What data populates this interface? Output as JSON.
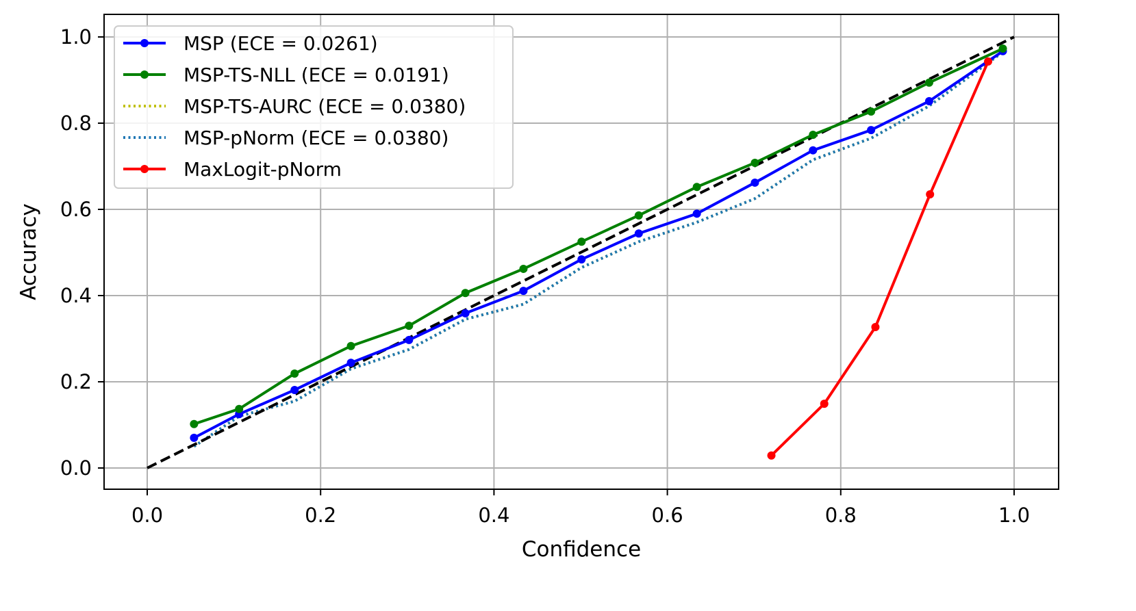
{
  "chart_data": {
    "type": "line",
    "title": "",
    "xlabel": "Confidence",
    "ylabel": "Accuracy",
    "xlim": [
      -0.05,
      1.05
    ],
    "ylim": [
      -0.05,
      1.05
    ],
    "xticks": [
      "0.0",
      "0.2",
      "0.4",
      "0.6",
      "0.8",
      "1.0"
    ],
    "yticks": [
      "0.0",
      "0.2",
      "0.4",
      "0.6",
      "0.8",
      "1.0"
    ],
    "grid": true,
    "legend_position": "top-left",
    "reference": {
      "x": [
        0,
        1
      ],
      "y": [
        0,
        1
      ],
      "color": "#000000",
      "style": "dashed"
    },
    "series": [
      {
        "name": "MSP (ECE = 0.0261)",
        "color": "#0000ff",
        "style": "solid",
        "markers": true,
        "x": [
          0.054,
          0.106,
          0.17,
          0.235,
          0.302,
          0.367,
          0.434,
          0.501,
          0.567,
          0.634,
          0.701,
          0.768,
          0.835,
          0.902,
          0.987
        ],
        "y": [
          0.07,
          0.125,
          0.181,
          0.244,
          0.297,
          0.359,
          0.411,
          0.484,
          0.544,
          0.59,
          0.662,
          0.737,
          0.784,
          0.851,
          0.967
        ]
      },
      {
        "name": "MSP-TS-NLL (ECE = 0.0191)",
        "color": "#008000",
        "style": "solid",
        "markers": true,
        "x": [
          0.054,
          0.106,
          0.17,
          0.235,
          0.302,
          0.367,
          0.434,
          0.501,
          0.567,
          0.634,
          0.701,
          0.768,
          0.835,
          0.902,
          0.987
        ],
        "y": [
          0.102,
          0.137,
          0.219,
          0.283,
          0.33,
          0.406,
          0.462,
          0.525,
          0.586,
          0.652,
          0.708,
          0.773,
          0.827,
          0.894,
          0.973
        ]
      },
      {
        "name": "MSP-TS-AURC (ECE = 0.0380)",
        "color": "#bfbf00",
        "style": "dotted",
        "markers": false,
        "x": [
          0.054,
          0.106,
          0.17,
          0.235,
          0.302,
          0.367,
          0.434,
          0.501,
          0.567,
          0.634,
          0.701,
          0.768,
          0.835,
          0.902,
          0.987
        ],
        "y": [
          0.05,
          0.12,
          0.155,
          0.23,
          0.275,
          0.345,
          0.38,
          0.465,
          0.525,
          0.57,
          0.625,
          0.715,
          0.765,
          0.84,
          0.965
        ]
      },
      {
        "name": "MSP-pNorm (ECE = 0.0380)",
        "color": "#1f77b4",
        "style": "dotted",
        "markers": false,
        "x": [
          0.054,
          0.106,
          0.17,
          0.235,
          0.302,
          0.367,
          0.434,
          0.501,
          0.567,
          0.634,
          0.701,
          0.768,
          0.835,
          0.902,
          0.987
        ],
        "y": [
          0.05,
          0.12,
          0.155,
          0.23,
          0.275,
          0.345,
          0.38,
          0.465,
          0.525,
          0.57,
          0.625,
          0.715,
          0.765,
          0.84,
          0.965
        ]
      },
      {
        "name": "MaxLogit-pNorm",
        "color": "#ff0000",
        "style": "solid",
        "markers": true,
        "x": [
          0.72,
          0.781,
          0.84,
          0.903,
          0.97
        ],
        "y": [
          0.029,
          0.149,
          0.327,
          0.635,
          0.943
        ]
      }
    ]
  }
}
